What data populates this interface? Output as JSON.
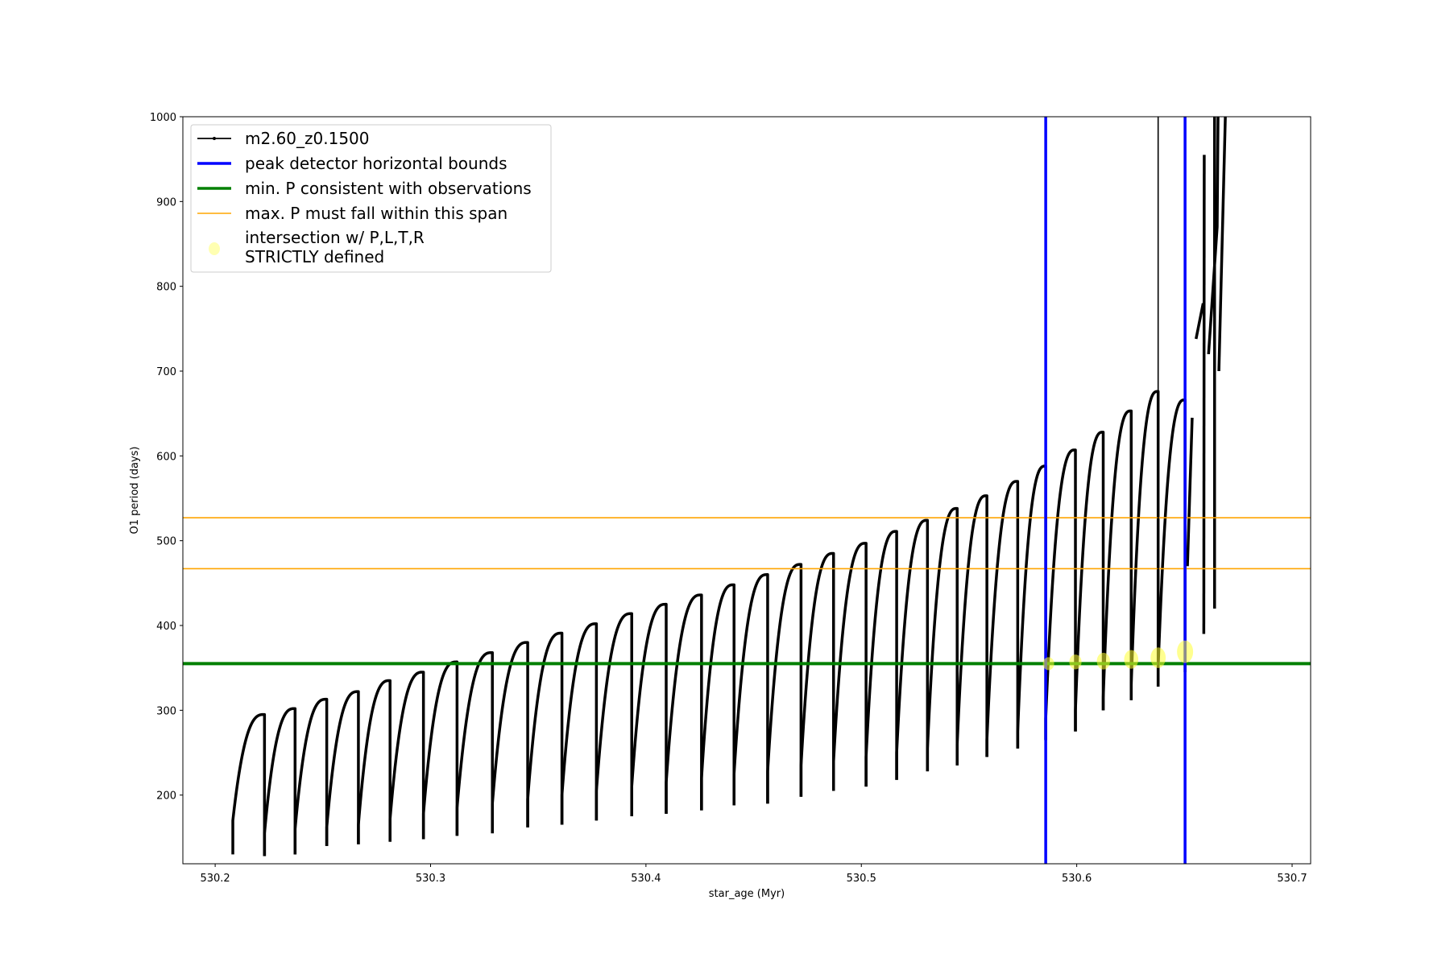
{
  "chart_data": {
    "type": "line",
    "title": "",
    "xlabel": "star_age (Myr)",
    "ylabel": "O1 period (days)",
    "xlim": [
      530.185,
      530.7086
    ],
    "ylim": [
      119,
      1000
    ],
    "xticks": [
      530.2,
      530.3,
      530.4,
      530.5,
      530.6,
      530.7
    ],
    "xtick_labels": [
      "530.2",
      "530.3",
      "530.4",
      "530.5",
      "530.6",
      "530.7"
    ],
    "yticks": [
      200,
      300,
      400,
      500,
      600,
      700,
      800,
      900,
      1000
    ],
    "ytick_labels": [
      "200",
      "300",
      "400",
      "500",
      "600",
      "700",
      "800",
      "900",
      "1000"
    ],
    "grid": false,
    "legend_position": "top-left",
    "legend": [
      {
        "label": "m2.60_z0.1500",
        "style": "black-line-marker",
        "color": "#000000"
      },
      {
        "label": "peak detector horizontal bounds",
        "style": "thick-line",
        "color": "#0000ff"
      },
      {
        "label": "min. P consistent with observations",
        "style": "thick-line",
        "color": "#008000"
      },
      {
        "label": "max. P must fall within this span",
        "style": "thin-line",
        "color": "#ffa500"
      },
      {
        "label": "intersection w/ P,L,T,R",
        "label2": "STRICTLY defined",
        "style": "marker",
        "color": "#ffff66"
      }
    ],
    "series": {
      "name": "m2.60_z0.1500",
      "color": "#000000",
      "cycle_boundaries": [
        530.2082,
        530.2229,
        530.2371,
        530.2518,
        530.2665,
        530.2812,
        530.2967,
        530.3123,
        530.3287,
        530.3451,
        530.361,
        530.377,
        530.3934,
        530.4094,
        530.4258,
        530.4409,
        530.4565,
        530.472,
        530.4871,
        530.5022,
        530.5164,
        530.5307,
        530.5445,
        530.5583,
        530.5726,
        530.5856,
        530.5994,
        530.6123,
        530.6253,
        530.6378,
        530.6503
      ],
      "cycle_min": [
        170,
        155,
        160,
        162,
        165,
        172,
        178,
        185,
        190,
        195,
        200,
        205,
        210,
        215,
        220,
        225,
        228,
        235,
        240,
        245,
        250,
        255,
        260,
        265,
        275,
        290,
        300,
        315,
        330,
        350
      ],
      "cycle_peak": [
        295,
        302,
        313,
        322,
        335,
        345,
        357,
        368,
        380,
        391,
        402,
        414,
        425,
        436,
        448,
        460,
        472,
        485,
        497,
        511,
        524,
        538,
        553,
        570,
        588,
        607,
        628,
        653,
        676,
        666
      ],
      "spike_low": [
        130,
        128,
        130,
        140,
        142,
        145,
        148,
        152,
        155,
        162,
        165,
        170,
        175,
        178,
        182,
        188,
        190,
        198,
        205,
        210,
        218,
        228,
        235,
        245,
        255,
        265,
        275,
        300,
        312,
        328,
        345
      ],
      "tail_segments": [
        [
          [
            530.6514,
            470
          ],
          [
            530.6536,
            645
          ]
        ],
        [
          [
            530.6554,
            738
          ],
          [
            530.6587,
            780
          ]
        ],
        [
          [
            530.659,
            390
          ],
          [
            530.6592,
            955
          ]
        ],
        [
          [
            530.6612,
            720
          ],
          [
            530.6652,
            870
          ],
          [
            530.6656,
            1000
          ]
        ],
        [
          [
            530.664,
            420
          ],
          [
            530.664,
            1000
          ]
        ],
        [
          [
            530.666,
            700
          ],
          [
            530.669,
            1000
          ]
        ]
      ]
    },
    "hlines": [
      {
        "name": "min-p",
        "y": 355,
        "color": "#008000"
      },
      {
        "name": "max-p-upper",
        "y": 527,
        "color": "#ffa500"
      },
      {
        "name": "max-p-lower",
        "y": 467,
        "color": "#ffa500"
      }
    ],
    "vlines": [
      {
        "name": "peak-bound-left",
        "x": 530.5856,
        "color": "#0000ff"
      },
      {
        "name": "peak-bound-right",
        "x": 530.6503,
        "color": "#0000ff"
      },
      {
        "name": "series-spike",
        "x": 530.6378,
        "color": "#000000"
      }
    ],
    "intersections": [
      {
        "x": 530.5869,
        "y": 355
      },
      {
        "x": 530.5994,
        "y": 357
      },
      {
        "x": 530.6124,
        "y": 358
      },
      {
        "x": 530.6253,
        "y": 360
      },
      {
        "x": 530.6378,
        "y": 362
      },
      {
        "x": 530.6503,
        "y": 369
      }
    ]
  }
}
